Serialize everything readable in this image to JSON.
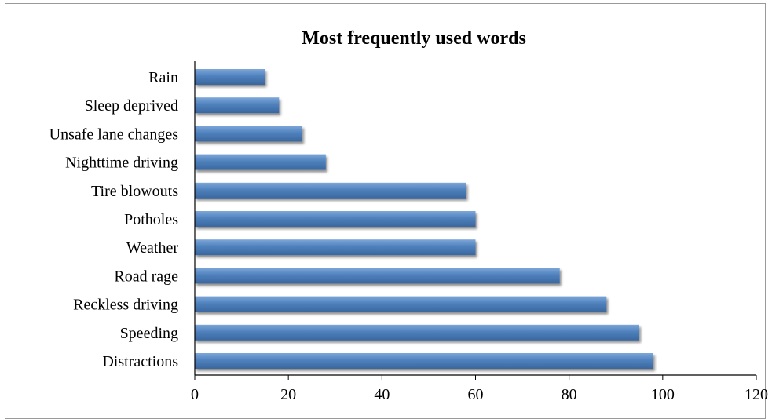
{
  "chart_data": {
    "type": "bar",
    "orientation": "horizontal",
    "title": "Most frequently used words",
    "xlabel": "",
    "ylabel": "",
    "categories": [
      "Rain",
      "Sleep deprived",
      "Unsafe lane changes",
      "Nighttime driving",
      "Tire blowouts",
      "Potholes",
      "Weather",
      "Road rage",
      "Reckless driving",
      "Speeding",
      "Distractions"
    ],
    "values": [
      15,
      18,
      23,
      28,
      58,
      60,
      60,
      78,
      88,
      95,
      98
    ],
    "xlim": [
      0,
      120
    ],
    "xticks": [
      0,
      20,
      40,
      60,
      80,
      100,
      120
    ],
    "grid": false,
    "legend": "none",
    "bar_color": "#4f81bd",
    "bar_highlight": "#7da7d9",
    "bar_shadow": "#3a679e"
  }
}
